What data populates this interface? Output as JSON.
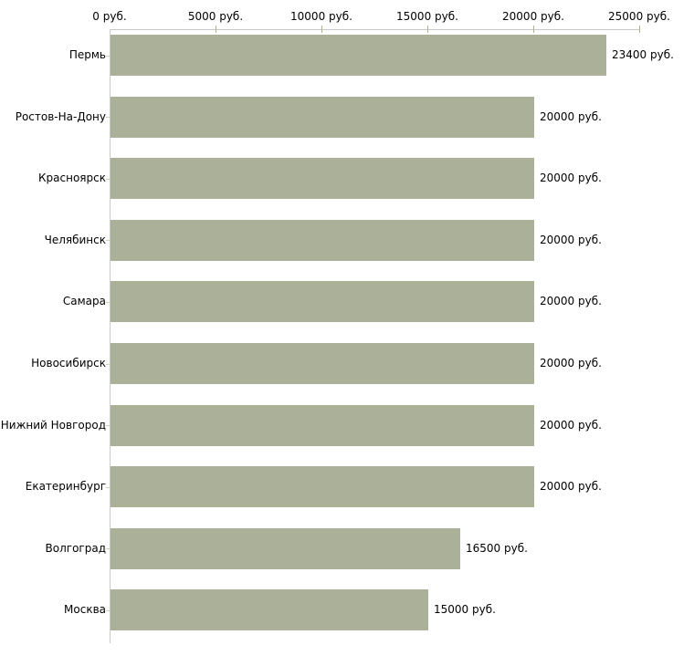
{
  "chart_data": {
    "type": "bar",
    "orientation": "horizontal",
    "title": "",
    "unit": "руб.",
    "categories": [
      "Пермь",
      "Ростов-На-Дону",
      "Красноярск",
      "Челябинск",
      "Самара",
      "Новосибирск",
      "Нижний Новгород",
      "Екатеринбург",
      "Волгоград",
      "Москва"
    ],
    "values": [
      23400,
      20000,
      20000,
      20000,
      20000,
      20000,
      20000,
      20000,
      16500,
      15000
    ],
    "value_labels": [
      "23400 руб.",
      "20000 руб.",
      "20000 руб.",
      "20000 руб.",
      "20000 руб.",
      "20000 руб.",
      "20000 руб.",
      "20000 руб.",
      "16500 руб.",
      "15000 руб."
    ],
    "x_axis": {
      "position": "top",
      "min": 0,
      "max": 25000,
      "ticks": [
        0,
        5000,
        10000,
        15000,
        20000,
        25000
      ],
      "tick_labels": [
        "0 руб.",
        "5000 руб.",
        "10000 руб.",
        "15000 руб.",
        "20000 руб.",
        "25000 руб."
      ]
    },
    "grid": false,
    "legend": false,
    "colors": {
      "bar_fill": "#abb198",
      "axis_line": "#c9c9c9",
      "x_tick_mark": "#b1b18e",
      "category_tick_mark": "#d3cebe",
      "text": "#000000",
      "background": "#ffffff"
    }
  }
}
